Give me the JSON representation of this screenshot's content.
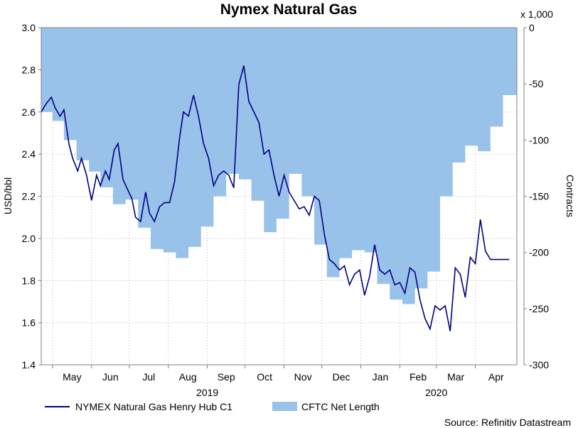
{
  "colors": {
    "line": "#000080",
    "area": "#99c2ea",
    "grid": "#b4b4b4",
    "axis": "#808080"
  },
  "chart_data": {
    "type": "line",
    "title": "Nymex Natural Gas",
    "ylabel_left": "USD/bbl",
    "ylabel_right": "Contracts",
    "right_multiplier": "x 1,000",
    "source": "Source: Refinitiv Datastream",
    "x_range": [
      "2019-04-22",
      "2020-05-04"
    ],
    "ylim_left": [
      1.4,
      3.0
    ],
    "ylim_right": [
      -300,
      0
    ],
    "yticks_left": [
      "1.4",
      "1.6",
      "1.8",
      "2.0",
      "2.2",
      "2.4",
      "2.6",
      "2.8",
      "3.0"
    ],
    "yticks_right": [
      "-300",
      "-250",
      "-200",
      "-150",
      "-100",
      "-50",
      "0"
    ],
    "month_ticks": [
      {
        "label": "May",
        "date": "2019-05-01"
      },
      {
        "label": "Jun",
        "date": "2019-06-01"
      },
      {
        "label": "Jul",
        "date": "2019-07-01"
      },
      {
        "label": "Aug",
        "date": "2019-08-01"
      },
      {
        "label": "Sep",
        "date": "2019-09-01"
      },
      {
        "label": "Oct",
        "date": "2019-10-01"
      },
      {
        "label": "Nov",
        "date": "2019-11-01"
      },
      {
        "label": "Dec",
        "date": "2019-12-01"
      },
      {
        "label": "Jan",
        "date": "2020-01-01"
      },
      {
        "label": "Feb",
        "date": "2020-02-01"
      },
      {
        "label": "Mar",
        "date": "2020-03-01"
      },
      {
        "label": "Apr",
        "date": "2020-04-01"
      }
    ],
    "year_labels": [
      {
        "label": "2019",
        "date": "2019-09-01"
      },
      {
        "label": "2020",
        "date": "2020-03-01"
      }
    ],
    "grid": true,
    "legend_position": "bottom-left",
    "series": [
      {
        "name": "NYMEX Natural Gas Henry Hub C1",
        "axis": "left",
        "type": "line",
        "x": [
          "2019-04-22",
          "2019-04-26",
          "2019-04-30",
          "2019-05-03",
          "2019-05-07",
          "2019-05-10",
          "2019-05-14",
          "2019-05-17",
          "2019-05-21",
          "2019-05-24",
          "2019-05-28",
          "2019-06-01",
          "2019-06-05",
          "2019-06-08",
          "2019-06-12",
          "2019-06-15",
          "2019-06-19",
          "2019-06-22",
          "2019-06-26",
          "2019-06-29",
          "2019-07-03",
          "2019-07-06",
          "2019-07-10",
          "2019-07-14",
          "2019-07-17",
          "2019-07-21",
          "2019-07-25",
          "2019-07-29",
          "2019-08-02",
          "2019-08-06",
          "2019-08-10",
          "2019-08-13",
          "2019-08-17",
          "2019-08-21",
          "2019-08-25",
          "2019-08-29",
          "2019-09-02",
          "2019-09-06",
          "2019-09-10",
          "2019-09-14",
          "2019-09-18",
          "2019-09-22",
          "2019-09-26",
          "2019-09-30",
          "2019-10-04",
          "2019-10-08",
          "2019-10-12",
          "2019-10-16",
          "2019-10-20",
          "2019-10-24",
          "2019-10-28",
          "2019-11-01",
          "2019-11-05",
          "2019-11-09",
          "2019-11-13",
          "2019-11-17",
          "2019-11-21",
          "2019-11-25",
          "2019-11-29",
          "2019-12-03",
          "2019-12-07",
          "2019-12-11",
          "2019-12-15",
          "2019-12-19",
          "2019-12-23",
          "2019-12-27",
          "2019-12-31",
          "2020-01-04",
          "2020-01-08",
          "2020-01-12",
          "2020-01-16",
          "2020-01-20",
          "2020-01-24",
          "2020-01-28",
          "2020-02-01",
          "2020-02-05",
          "2020-02-09",
          "2020-02-13",
          "2020-02-17",
          "2020-02-21",
          "2020-02-25",
          "2020-02-29",
          "2020-03-04",
          "2020-03-08",
          "2020-03-12",
          "2020-03-16",
          "2020-03-20",
          "2020-03-24",
          "2020-03-28",
          "2020-04-01",
          "2020-04-05",
          "2020-04-09",
          "2020-04-13",
          "2020-04-17",
          "2020-04-21",
          "2020-04-25",
          "2020-04-28"
        ],
        "values": [
          2.6,
          2.64,
          2.67,
          2.62,
          2.58,
          2.61,
          2.45,
          2.38,
          2.32,
          2.38,
          2.3,
          2.18,
          2.3,
          2.25,
          2.32,
          2.28,
          2.42,
          2.45,
          2.28,
          2.24,
          2.19,
          2.1,
          2.08,
          2.22,
          2.12,
          2.08,
          2.15,
          2.17,
          2.17,
          2.27,
          2.48,
          2.6,
          2.58,
          2.68,
          2.58,
          2.45,
          2.38,
          2.25,
          2.3,
          2.32,
          2.3,
          2.24,
          2.73,
          2.82,
          2.65,
          2.6,
          2.55,
          2.4,
          2.42,
          2.3,
          2.2,
          2.3,
          2.22,
          2.18,
          2.14,
          2.15,
          2.11,
          2.2,
          2.18,
          2.02,
          1.9,
          1.88,
          1.85,
          1.87,
          1.78,
          1.83,
          1.85,
          1.73,
          1.82,
          1.97,
          1.85,
          1.83,
          1.85,
          1.78,
          1.79,
          1.74,
          1.86,
          1.84,
          1.71,
          1.62,
          1.57,
          1.68,
          1.66,
          1.68,
          1.56,
          1.86,
          1.83,
          1.72,
          1.91,
          1.88,
          2.09,
          1.94,
          1.9,
          1.9,
          1.9,
          1.9,
          1.9
        ]
      },
      {
        "name": "CFTC Net Length",
        "axis": "right",
        "type": "area",
        "x": [
          "2019-04-22",
          "2019-05-01",
          "2019-05-10",
          "2019-05-20",
          "2019-05-30",
          "2019-06-08",
          "2019-06-18",
          "2019-06-28",
          "2019-07-08",
          "2019-07-18",
          "2019-07-28",
          "2019-08-07",
          "2019-08-17",
          "2019-08-27",
          "2019-09-06",
          "2019-09-16",
          "2019-09-26",
          "2019-10-06",
          "2019-10-16",
          "2019-10-26",
          "2019-11-05",
          "2019-11-15",
          "2019-11-25",
          "2019-12-05",
          "2019-12-15",
          "2019-12-25",
          "2020-01-04",
          "2020-01-14",
          "2020-01-24",
          "2020-02-03",
          "2020-02-13",
          "2020-02-23",
          "2020-03-04",
          "2020-03-14",
          "2020-03-24",
          "2020-04-03",
          "2020-04-13",
          "2020-04-23",
          "2020-05-04"
        ],
        "values": [
          -75,
          -83,
          -100,
          -118,
          -128,
          -142,
          -157,
          -153,
          -178,
          -197,
          -200,
          -205,
          -195,
          -177,
          -150,
          -130,
          -135,
          -154,
          -182,
          -170,
          -130,
          -150,
          -193,
          -222,
          -205,
          -198,
          -200,
          -228,
          -242,
          -246,
          -232,
          -217,
          -150,
          -120,
          -105,
          -110,
          -88,
          -60,
          -38
        ]
      }
    ]
  }
}
